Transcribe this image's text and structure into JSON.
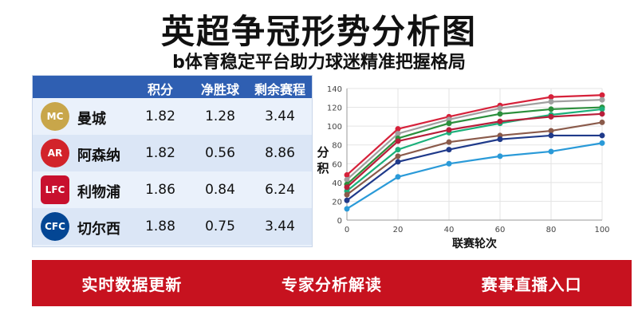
{
  "header": {
    "title": "英超争冠形势分析图",
    "subtitle": "b体育稳定平台助力球迷精准把握格局"
  },
  "table": {
    "columns": [
      "积分",
      "净胜球",
      "剩余赛程"
    ],
    "rows": [
      {
        "team": "曼城",
        "points": "1.82",
        "goal_diff": "1.28",
        "remaining": "3.44",
        "logo_color": "#c8a64a"
      },
      {
        "team": "阿森纳",
        "points": "1.82",
        "goal_diff": "0.56",
        "remaining": "8.86",
        "logo_color": "#d2232a"
      },
      {
        "team": "利物浦",
        "points": "1.86",
        "goal_diff": "0.84",
        "remaining": "6.24",
        "logo_color": "#c8102e"
      },
      {
        "team": "切尔西",
        "points": "1.88",
        "goal_diff": "0.75",
        "remaining": "3.44",
        "logo_color": "#034694"
      }
    ]
  },
  "chart_data": {
    "type": "line",
    "ylabel": "分积",
    "xlabel": "联赛轮次",
    "x": [
      0,
      20,
      40,
      60,
      80,
      100
    ],
    "xlim": [
      0,
      100
    ],
    "ylim": [
      0,
      140
    ],
    "yticks": [
      0,
      20,
      40,
      60,
      80,
      100,
      120,
      140
    ],
    "grid": true,
    "series": [
      {
        "color": "#d6213a",
        "values": [
          48,
          97,
          110,
          122,
          131,
          133
        ]
      },
      {
        "color": "#a0a0a0",
        "values": [
          43,
          92,
          107,
          119,
          126,
          128
        ]
      },
      {
        "color": "#2b8f3c",
        "values": [
          38,
          87,
          103,
          113,
          118,
          120
        ]
      },
      {
        "color": "#1bb07a",
        "values": [
          31,
          75,
          93,
          103,
          112,
          118
        ]
      },
      {
        "color": "#b81e3a",
        "values": [
          35,
          84,
          96,
          105,
          110,
          113
        ]
      },
      {
        "color": "#8a5a4a",
        "values": [
          27,
          68,
          83,
          90,
          95,
          104
        ]
      },
      {
        "color": "#1f3a8a",
        "values": [
          21,
          62,
          75,
          86,
          90,
          90
        ]
      },
      {
        "color": "#2a9ad8",
        "values": [
          12,
          46,
          60,
          68,
          73,
          82
        ]
      }
    ]
  },
  "banner": {
    "items": [
      "实时数据更新",
      "专家分析解读",
      "赛事直播入口"
    ]
  }
}
